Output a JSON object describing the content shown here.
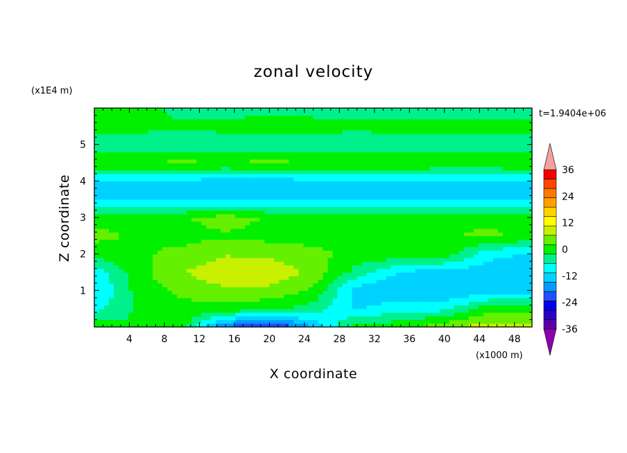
{
  "chart_data": {
    "type": "heatmap",
    "title": "zonal velocity",
    "xlabel": "X coordinate",
    "ylabel": "Z coordinate",
    "x_unit": "(x1000 m)",
    "y_unit": "(x1E4 m)",
    "time_label": "t=1.9404e+06",
    "xlim": [
      0,
      50
    ],
    "ylim": [
      0,
      6
    ],
    "x_ticks": [
      "4",
      "8",
      "12",
      "16",
      "20",
      "24",
      "28",
      "32",
      "36",
      "40",
      "44",
      "48"
    ],
    "y_ticks": [
      "1",
      "2",
      "3",
      "4",
      "5"
    ],
    "colorbar": {
      "labels": [
        "36",
        "24",
        "12",
        "0",
        "-12",
        "-24",
        "-36"
      ],
      "levels_bottom_to_top": [
        -42,
        -36,
        -30,
        -24,
        -18,
        -12,
        -6,
        0,
        6,
        12,
        18,
        24,
        30,
        36,
        42
      ],
      "colors_bottom_to_top": [
        "#8c00b0",
        "#5a00a8",
        "#2800c8",
        "#0000e6",
        "#1e50ff",
        "#009cff",
        "#00d2ff",
        "#00ffff",
        "#00f08c",
        "#00f000",
        "#64f000",
        "#c8f000",
        "#ffff00",
        "#ffd200",
        "#ffa000",
        "#ff7800",
        "#ff4600",
        "#f50000",
        "#f5a0a0"
      ],
      "extend": "both"
    },
    "z_rows_bottom_to_top": {
      "x": [
        0,
        5,
        10,
        15,
        20,
        25,
        30,
        35,
        40,
        45,
        50
      ],
      "z": [
        0,
        0.5,
        1,
        1.5,
        2,
        2.5,
        3,
        3.5,
        4,
        4.5,
        5,
        5.5,
        6
      ],
      "values": [
        [
          3,
          0,
          3,
          -20,
          -26,
          -14,
          3,
          3,
          8,
          12,
          12
        ],
        [
          -6,
          1,
          3,
          3,
          1,
          -2,
          -10,
          -6,
          -6,
          3,
          3
        ],
        [
          -10,
          2,
          6,
          8,
          8,
          4,
          -12,
          -14,
          -14,
          -12,
          -12
        ],
        [
          -8,
          3,
          9,
          13,
          13,
          8,
          -2,
          -10,
          -12,
          -12,
          -12
        ],
        [
          2,
          4,
          6,
          9,
          8,
          6,
          3,
          3,
          3,
          -8,
          -10
        ],
        [
          6,
          4,
          3,
          4,
          3,
          3,
          4,
          4,
          4,
          6,
          3
        ],
        [
          3,
          3,
          4,
          7,
          4,
          3,
          3,
          3,
          3,
          3,
          3
        ],
        [
          -10,
          -10,
          -10,
          -10,
          -10,
          -10,
          -10,
          -10,
          -10,
          -10,
          -10
        ],
        [
          -10,
          -10,
          -10,
          -12,
          -12,
          -10,
          -10,
          -10,
          -10,
          -10,
          -10
        ],
        [
          5,
          5,
          6,
          5,
          6,
          5,
          5,
          5,
          4,
          4,
          5
        ],
        [
          -4,
          -4,
          -5,
          -4,
          -3,
          -4,
          -5,
          -4,
          -3,
          -4,
          -4
        ],
        [
          2,
          2,
          1,
          2,
          3,
          2,
          2,
          2,
          2,
          2,
          2
        ],
        [
          2,
          2,
          -2,
          -3,
          -2,
          -2,
          -3,
          -3,
          -3,
          -2,
          -3
        ]
      ]
    }
  }
}
